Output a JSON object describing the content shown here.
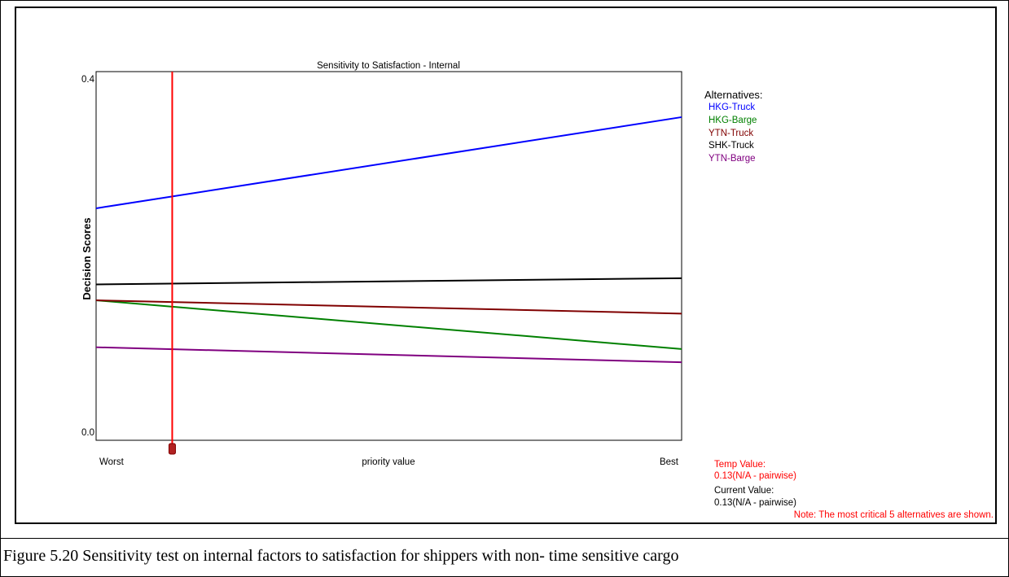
{
  "chart_data": {
    "type": "line",
    "title": "Sensitivity to Satisfaction - Internal",
    "xlabel": "priority value",
    "ylabel": "Decision Scores",
    "x_tick_left": "Worst",
    "x_tick_right": "Best",
    "y_tick_top": "0.4",
    "y_tick_bottom": "0.0",
    "ylim": [
      0,
      0.4
    ],
    "xlim": [
      0,
      1
    ],
    "marker_x": 0.13,
    "series": [
      {
        "name": "HKG-Truck",
        "color": "#0000ff",
        "x": [
          0,
          1
        ],
        "values": [
          0.252,
          0.355
        ]
      },
      {
        "name": "HKG-Barge",
        "color": "#008000",
        "x": [
          0,
          1
        ],
        "values": [
          0.148,
          0.093
        ]
      },
      {
        "name": "YTN-Truck",
        "color": "#800000",
        "x": [
          0,
          1
        ],
        "values": [
          0.148,
          0.133
        ]
      },
      {
        "name": "SHK-Truck",
        "color": "#000000",
        "x": [
          0,
          1
        ],
        "values": [
          0.166,
          0.173
        ]
      },
      {
        "name": "YTN-Barge",
        "color": "#800080",
        "x": [
          0,
          1
        ],
        "values": [
          0.095,
          0.078
        ]
      }
    ],
    "legend_title": "Alternatives:",
    "legend_placement": "right",
    "marker_color": "#ff0000"
  },
  "info": {
    "temp_label": "Temp Value:",
    "temp_value": "0.13(N/A - pairwise)",
    "current_label": "Current Value:",
    "current_value": "0.13(N/A - pairwise)",
    "note": "Note: The most critical 5 alternatives are shown."
  },
  "caption": "Figure 5.20  Sensitivity test on internal factors to satisfaction for shippers with non- time sensitive cargo"
}
